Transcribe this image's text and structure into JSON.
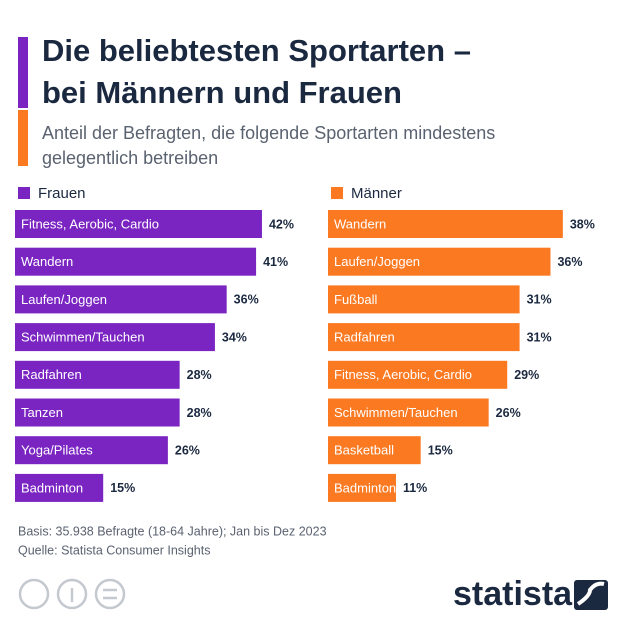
{
  "header": {
    "title": [
      "Die beliebtesten Sportarten –",
      "bei Männern und Frauen"
    ],
    "subtitle": [
      "Anteil der Befragten, die folgende Sportarten mindestens",
      "gelegentlich betreiben"
    ]
  },
  "chart_data": [
    {
      "type": "bar",
      "orientation": "horizontal",
      "categories": [
        "Fitness, Aerobic, Cardio",
        "Wandern",
        "Laufen/Joggen",
        "Schwimmen/Tauchen",
        "Radfahren",
        "Tanzen",
        "Yoga/Pilates",
        "Badminton"
      ],
      "series": [
        {
          "name": "Frauen",
          "color": "#7a24c2",
          "values": [
            42,
            41,
            36,
            34,
            28,
            28,
            26,
            15
          ],
          "value_labels": [
            "42%",
            "41%",
            "36%",
            "34%",
            "28%",
            "28%",
            "26%",
            "15%"
          ]
        }
      ]
    },
    {
      "type": "bar",
      "orientation": "horizontal",
      "categories": [
        "Wandern",
        "Laufen/Joggen",
        "Fußball",
        "Radfahren",
        "Fitness, Aerobic, Cardio",
        "Schwimmen/Tauchen",
        "Basketball",
        "Badminton"
      ],
      "series": [
        {
          "name": "Männer",
          "color": "#fa7921",
          "values": [
            38,
            36,
            31,
            31,
            29,
            26,
            15,
            11
          ],
          "value_labels": [
            "38%",
            "36%",
            "31%",
            "31%",
            "29%",
            "26%",
            "15%",
            "11%"
          ]
        }
      ]
    }
  ],
  "footer": {
    "basis": "Basis: 35.938 Befragte (18-64 Jahre); Jan bis Dez 2023",
    "source": "Quelle: Statista Consumer Insights",
    "brand": "statista"
  }
}
